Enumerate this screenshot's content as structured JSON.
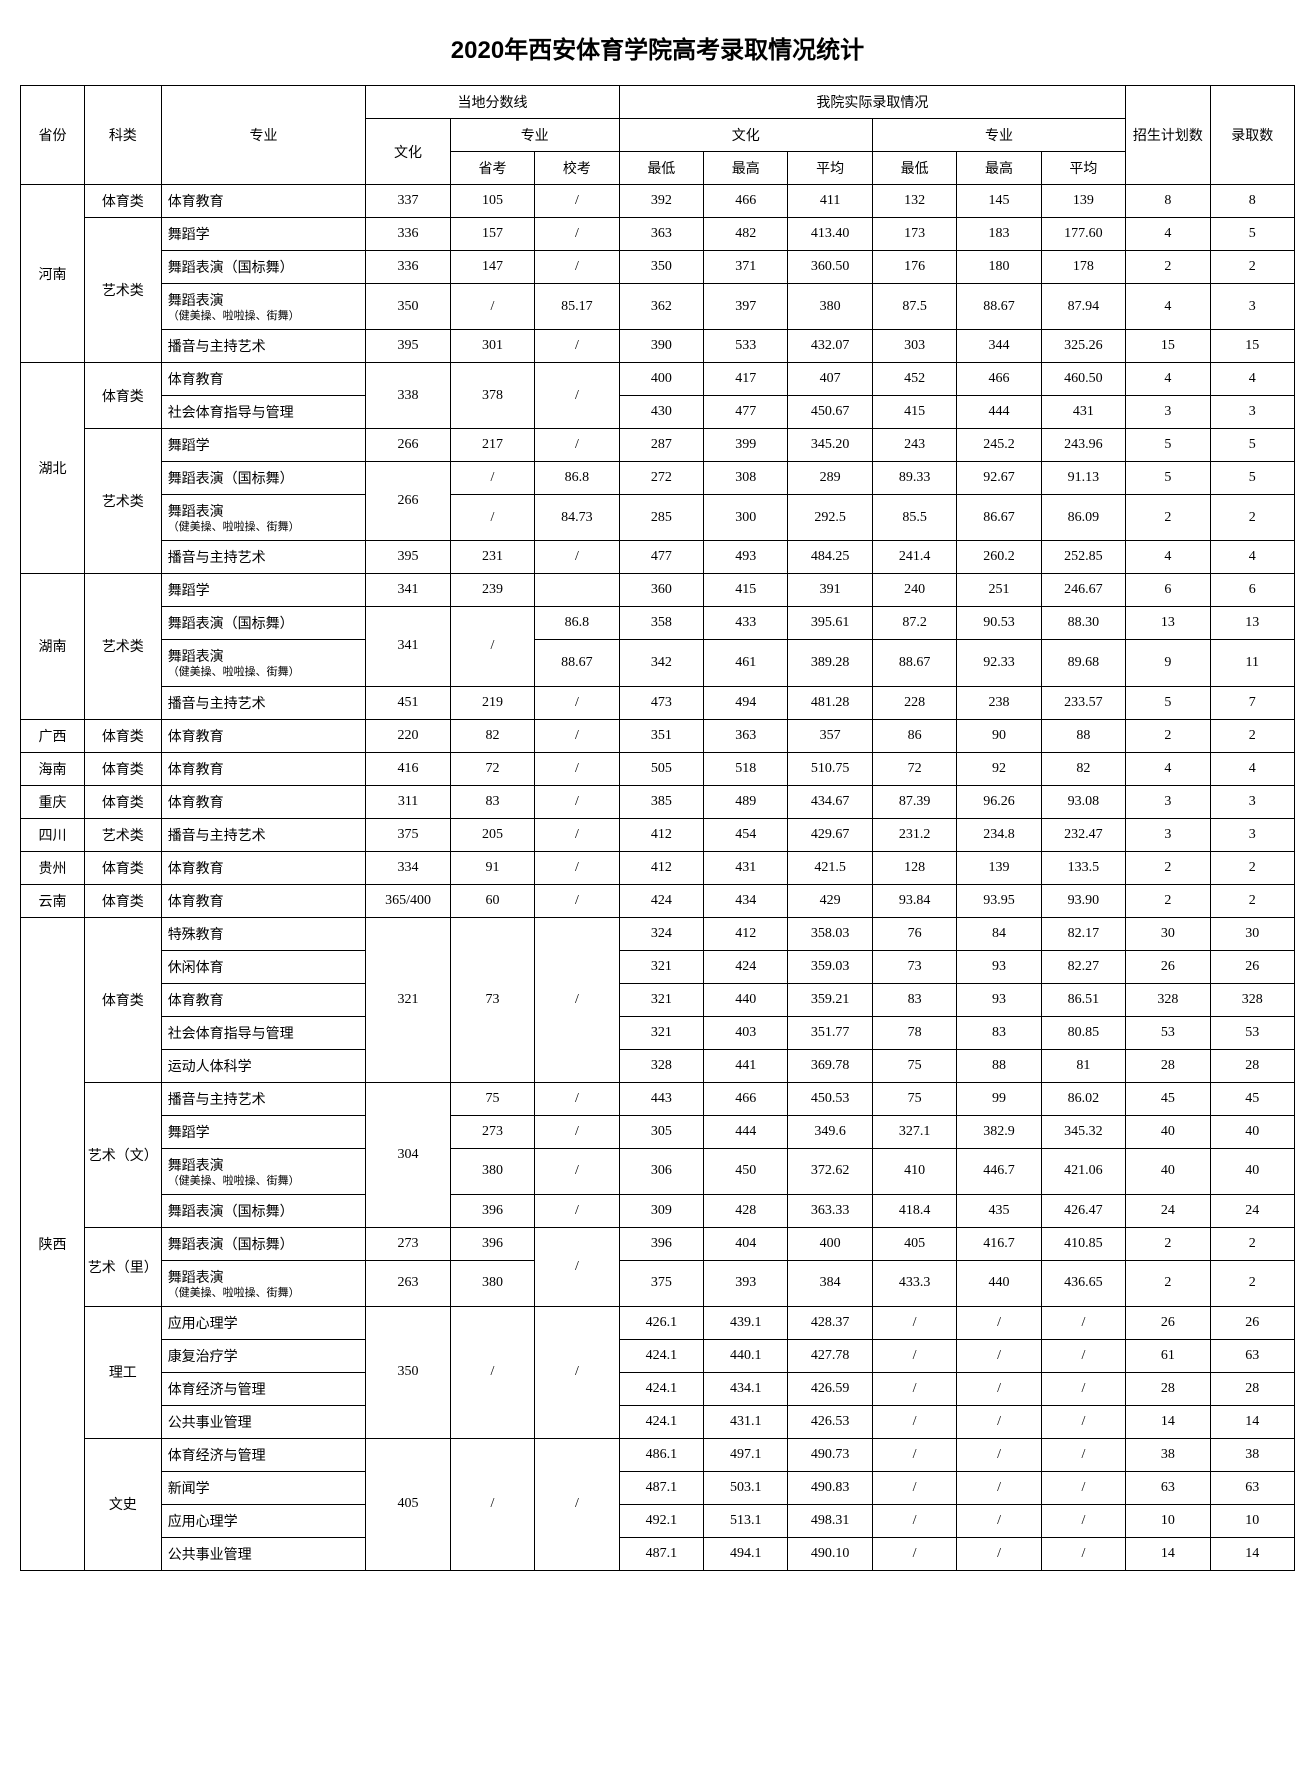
{
  "title": "2020年西安体育学院高考录取情况统计",
  "headers": {
    "province": "省份",
    "category": "科类",
    "major": "专业",
    "local_line": "当地分数线",
    "our_admit": "我院实际录取情况",
    "plan": "招生计划数",
    "admit": "录取数",
    "culture": "文化",
    "specialty": "专业",
    "prov_exam": "省考",
    "school_exam": "校考",
    "min": "最低",
    "max": "最高",
    "avg": "平均"
  },
  "major_sub": "（健美操、啦啦操、街舞）",
  "rows": [
    {
      "prov": "河南",
      "prov_span": 5,
      "cat": "体育类",
      "cat_span": 1,
      "major": "体育教育",
      "wh": "337",
      "sk": "105",
      "xk": "/",
      "cmin": "392",
      "cmax": "466",
      "cavg": "411",
      "smin": "132",
      "smax": "145",
      "savg": "139",
      "plan": "8",
      "adm": "8"
    },
    {
      "cat": "艺术类",
      "cat_span": 4,
      "major": "舞蹈学",
      "wh": "336",
      "sk": "157",
      "xk": "/",
      "cmin": "363",
      "cmax": "482",
      "cavg": "413.40",
      "smin": "173",
      "smax": "183",
      "savg": "177.60",
      "plan": "4",
      "adm": "5"
    },
    {
      "major": "舞蹈表演（国标舞）",
      "wh": "336",
      "sk": "147",
      "xk": "/",
      "cmin": "350",
      "cmax": "371",
      "cavg": "360.50",
      "smin": "176",
      "smax": "180",
      "savg": "178",
      "plan": "2",
      "adm": "2"
    },
    {
      "major": "舞蹈表演",
      "sub": true,
      "wh": "350",
      "sk": "/",
      "xk": "85.17",
      "cmin": "362",
      "cmax": "397",
      "cavg": "380",
      "smin": "87.5",
      "smax": "88.67",
      "savg": "87.94",
      "plan": "4",
      "adm": "3"
    },
    {
      "major": "播音与主持艺术",
      "wh": "395",
      "sk": "301",
      "xk": "/",
      "cmin": "390",
      "cmax": "533",
      "cavg": "432.07",
      "smin": "303",
      "smax": "344",
      "savg": "325.26",
      "plan": "15",
      "adm": "15"
    },
    {
      "prov": "湖北",
      "prov_span": 6,
      "cat": "体育类",
      "cat_span": 2,
      "major": "体育教育",
      "wh": "338",
      "wh_span": 2,
      "sk": "378",
      "sk_span": 2,
      "xk": "/",
      "xk_span": 2,
      "cmin": "400",
      "cmax": "417",
      "cavg": "407",
      "smin": "452",
      "smax": "466",
      "savg": "460.50",
      "plan": "4",
      "adm": "4"
    },
    {
      "major": "社会体育指导与管理",
      "cmin": "430",
      "cmax": "477",
      "cavg": "450.67",
      "smin": "415",
      "smax": "444",
      "savg": "431",
      "plan": "3",
      "adm": "3"
    },
    {
      "cat": "艺术类",
      "cat_span": 4,
      "major": "舞蹈学",
      "wh": "266",
      "sk": "217",
      "xk": "/",
      "cmin": "287",
      "cmax": "399",
      "cavg": "345.20",
      "smin": "243",
      "smax": "245.2",
      "savg": "243.96",
      "plan": "5",
      "adm": "5"
    },
    {
      "major": "舞蹈表演（国标舞）",
      "wh": "266",
      "wh_span": 2,
      "sk": "/",
      "xk": "86.8",
      "cmin": "272",
      "cmax": "308",
      "cavg": "289",
      "smin": "89.33",
      "smax": "92.67",
      "savg": "91.13",
      "plan": "5",
      "adm": "5"
    },
    {
      "major": "舞蹈表演",
      "sub": true,
      "sk": "/",
      "xk": "84.73",
      "cmin": "285",
      "cmax": "300",
      "cavg": "292.5",
      "smin": "85.5",
      "smax": "86.67",
      "savg": "86.09",
      "plan": "2",
      "adm": "2"
    },
    {
      "major": "播音与主持艺术",
      "wh": "395",
      "sk": "231",
      "xk": "/",
      "cmin": "477",
      "cmax": "493",
      "cavg": "484.25",
      "smin": "241.4",
      "smax": "260.2",
      "savg": "252.85",
      "plan": "4",
      "adm": "4"
    },
    {
      "prov": "湖南",
      "prov_span": 4,
      "cat": "艺术类",
      "cat_span": 4,
      "major": "舞蹈学",
      "wh": "341",
      "sk": "239",
      "xk": "",
      "cmin": "360",
      "cmax": "415",
      "cavg": "391",
      "smin": "240",
      "smax": "251",
      "savg": "246.67",
      "plan": "6",
      "adm": "6"
    },
    {
      "major": "舞蹈表演（国标舞）",
      "wh": "341",
      "wh_span": 2,
      "sk": "/",
      "sk_span": 2,
      "xk": "86.8",
      "cmin": "358",
      "cmax": "433",
      "cavg": "395.61",
      "smin": "87.2",
      "smax": "90.53",
      "savg": "88.30",
      "plan": "13",
      "adm": "13"
    },
    {
      "major": "舞蹈表演",
      "sub": true,
      "xk": "88.67",
      "cmin": "342",
      "cmax": "461",
      "cavg": "389.28",
      "smin": "88.67",
      "smax": "92.33",
      "savg": "89.68",
      "plan": "9",
      "adm": "11"
    },
    {
      "major": "播音与主持艺术",
      "wh": "451",
      "sk": "219",
      "xk": "/",
      "cmin": "473",
      "cmax": "494",
      "cavg": "481.28",
      "smin": "228",
      "smax": "238",
      "savg": "233.57",
      "plan": "5",
      "adm": "7"
    },
    {
      "prov": "广西",
      "prov_span": 1,
      "cat": "体育类",
      "cat_span": 1,
      "major": "体育教育",
      "wh": "220",
      "sk": "82",
      "xk": "/",
      "cmin": "351",
      "cmax": "363",
      "cavg": "357",
      "smin": "86",
      "smax": "90",
      "savg": "88",
      "plan": "2",
      "adm": "2"
    },
    {
      "prov": "海南",
      "prov_span": 1,
      "cat": "体育类",
      "cat_span": 1,
      "major": "体育教育",
      "wh": "416",
      "sk": "72",
      "xk": "/",
      "cmin": "505",
      "cmax": "518",
      "cavg": "510.75",
      "smin": "72",
      "smax": "92",
      "savg": "82",
      "plan": "4",
      "adm": "4"
    },
    {
      "prov": "重庆",
      "prov_span": 1,
      "cat": "体育类",
      "cat_span": 1,
      "major": "体育教育",
      "wh": "311",
      "sk": "83",
      "xk": "/",
      "cmin": "385",
      "cmax": "489",
      "cavg": "434.67",
      "smin": "87.39",
      "smax": "96.26",
      "savg": "93.08",
      "plan": "3",
      "adm": "3"
    },
    {
      "prov": "四川",
      "prov_span": 1,
      "cat": "艺术类",
      "cat_span": 1,
      "major": "播音与主持艺术",
      "wh": "375",
      "sk": "205",
      "xk": "/",
      "cmin": "412",
      "cmax": "454",
      "cavg": "429.67",
      "smin": "231.2",
      "smax": "234.8",
      "savg": "232.47",
      "plan": "3",
      "adm": "3"
    },
    {
      "prov": "贵州",
      "prov_span": 1,
      "cat": "体育类",
      "cat_span": 1,
      "major": "体育教育",
      "wh": "334",
      "sk": "91",
      "xk": "/",
      "cmin": "412",
      "cmax": "431",
      "cavg": "421.5",
      "smin": "128",
      "smax": "139",
      "savg": "133.5",
      "plan": "2",
      "adm": "2"
    },
    {
      "prov": "云南",
      "prov_span": 1,
      "cat": "体育类",
      "cat_span": 1,
      "major": "体育教育",
      "wh": "365/400",
      "sk": "60",
      "xk": "/",
      "cmin": "424",
      "cmax": "434",
      "cavg": "429",
      "smin": "93.84",
      "smax": "93.95",
      "savg": "93.90",
      "plan": "2",
      "adm": "2"
    },
    {
      "prov": "陕西",
      "prov_span": 19,
      "cat": "体育类",
      "cat_span": 5,
      "major": "特殊教育",
      "wh": "321",
      "wh_span": 5,
      "sk": "73",
      "sk_span": 5,
      "xk": "/",
      "xk_span": 5,
      "cmin": "324",
      "cmax": "412",
      "cavg": "358.03",
      "smin": "76",
      "smax": "84",
      "savg": "82.17",
      "plan": "30",
      "adm": "30"
    },
    {
      "major": "休闲体育",
      "cmin": "321",
      "cmax": "424",
      "cavg": "359.03",
      "smin": "73",
      "smax": "93",
      "savg": "82.27",
      "plan": "26",
      "adm": "26"
    },
    {
      "major": "体育教育",
      "cmin": "321",
      "cmax": "440",
      "cavg": "359.21",
      "smin": "83",
      "smax": "93",
      "savg": "86.51",
      "plan": "328",
      "adm": "328"
    },
    {
      "major": "社会体育指导与管理",
      "cmin": "321",
      "cmax": "403",
      "cavg": "351.77",
      "smin": "78",
      "smax": "83",
      "savg": "80.85",
      "plan": "53",
      "adm": "53"
    },
    {
      "major": "运动人体科学",
      "cmin": "328",
      "cmax": "441",
      "cavg": "369.78",
      "smin": "75",
      "smax": "88",
      "savg": "81",
      "plan": "28",
      "adm": "28"
    },
    {
      "cat": "艺术（文）",
      "cat_span": 4,
      "major": "播音与主持艺术",
      "wh": "304",
      "wh_span": 4,
      "sk": "75",
      "xk": "/",
      "cmin": "443",
      "cmax": "466",
      "cavg": "450.53",
      "smin": "75",
      "smax": "99",
      "savg": "86.02",
      "plan": "45",
      "adm": "45"
    },
    {
      "major": "舞蹈学",
      "sk": "273",
      "xk": "/",
      "cmin": "305",
      "cmax": "444",
      "cavg": "349.6",
      "smin": "327.1",
      "smax": "382.9",
      "savg": "345.32",
      "plan": "40",
      "adm": "40"
    },
    {
      "major": "舞蹈表演",
      "sub": true,
      "sk": "380",
      "xk": "/",
      "cmin": "306",
      "cmax": "450",
      "cavg": "372.62",
      "smin": "410",
      "smax": "446.7",
      "savg": "421.06",
      "plan": "40",
      "adm": "40"
    },
    {
      "major": "舞蹈表演（国标舞）",
      "sk": "396",
      "xk": "/",
      "cmin": "309",
      "cmax": "428",
      "cavg": "363.33",
      "smin": "418.4",
      "smax": "435",
      "savg": "426.47",
      "plan": "24",
      "adm": "24"
    },
    {
      "cat": "艺术（里）",
      "cat_span": 2,
      "major": "舞蹈表演（国标舞）",
      "wh": "273",
      "sk": "396",
      "xk": "/",
      "xk_span": 2,
      "cmin": "396",
      "cmax": "404",
      "cavg": "400",
      "smin": "405",
      "smax": "416.7",
      "savg": "410.85",
      "plan": "2",
      "adm": "2"
    },
    {
      "major": "舞蹈表演",
      "sub": true,
      "wh": "263",
      "sk": "380",
      "cmin": "375",
      "cmax": "393",
      "cavg": "384",
      "smin": "433.3",
      "smax": "440",
      "savg": "436.65",
      "plan": "2",
      "adm": "2"
    },
    {
      "cat": "理工",
      "cat_span": 4,
      "major": "应用心理学",
      "wh": "350",
      "wh_span": 4,
      "sk": "/",
      "sk_span": 4,
      "xk": "/",
      "xk_span": 4,
      "cmin": "426.1",
      "cmax": "439.1",
      "cavg": "428.37",
      "smin": "/",
      "smax": "/",
      "savg": "/",
      "plan": "26",
      "adm": "26"
    },
    {
      "major": "康复治疗学",
      "cmin": "424.1",
      "cmax": "440.1",
      "cavg": "427.78",
      "smin": "/",
      "smax": "/",
      "savg": "/",
      "plan": "61",
      "adm": "63"
    },
    {
      "major": "体育经济与管理",
      "cmin": "424.1",
      "cmax": "434.1",
      "cavg": "426.59",
      "smin": "/",
      "smax": "/",
      "savg": "/",
      "plan": "28",
      "adm": "28"
    },
    {
      "major": "公共事业管理",
      "cmin": "424.1",
      "cmax": "431.1",
      "cavg": "426.53",
      "smin": "/",
      "smax": "/",
      "savg": "/",
      "plan": "14",
      "adm": "14"
    },
    {
      "cat": "文史",
      "cat_span": 4,
      "major": "体育经济与管理",
      "wh": "405",
      "wh_span": 4,
      "sk": "/",
      "sk_span": 4,
      "xk": "/",
      "xk_span": 4,
      "cmin": "486.1",
      "cmax": "497.1",
      "cavg": "490.73",
      "smin": "/",
      "smax": "/",
      "savg": "/",
      "plan": "38",
      "adm": "38"
    },
    {
      "major": "新闻学",
      "cmin": "487.1",
      "cmax": "503.1",
      "cavg": "490.83",
      "smin": "/",
      "smax": "/",
      "savg": "/",
      "plan": "63",
      "adm": "63"
    },
    {
      "major": "应用心理学",
      "cmin": "492.1",
      "cmax": "513.1",
      "cavg": "498.31",
      "smin": "/",
      "smax": "/",
      "savg": "/",
      "plan": "10",
      "adm": "10"
    },
    {
      "major": "公共事业管理",
      "cmin": "487.1",
      "cmax": "494.1",
      "cavg": "490.10",
      "smin": "/",
      "smax": "/",
      "savg": "/",
      "plan": "14",
      "adm": "14"
    }
  ]
}
